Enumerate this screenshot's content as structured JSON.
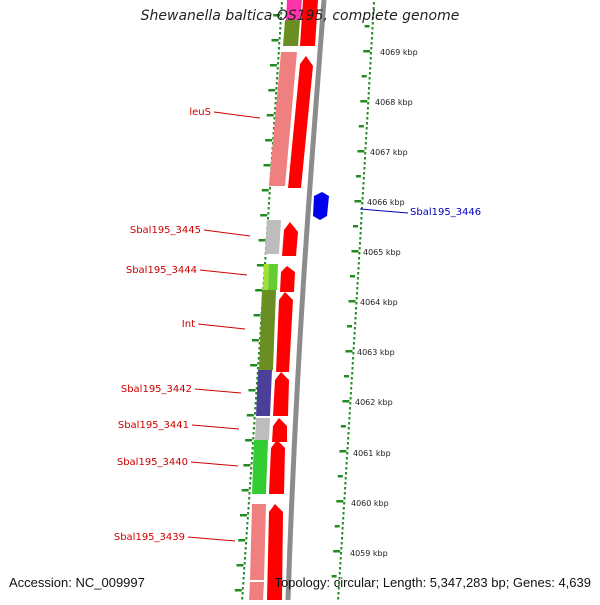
{
  "title": "Shewanella baltica OS195, complete genome",
  "accession": "Accession: NC_009997",
  "topology": "Topology: circular; Length: 5,347,283 bp; Genes: 4,639",
  "scale_ticks": [
    "4069 kbp",
    "4068 kbp",
    "4067 kbp",
    "4066 kbp",
    "4065 kbp",
    "4064 kbp",
    "4063 kbp",
    "4062 kbp",
    "4061 kbp",
    "4060 kbp",
    "4059 kbp"
  ],
  "colors": {
    "label_red": "#cc0000",
    "label_blue": "#0000bb",
    "dots": "#228b22",
    "backbone": "#8c8c8c",
    "cds": "#ff0000"
  },
  "left_labels": [
    {
      "name": "leuS"
    },
    {
      "name": "Sbal195_3445"
    },
    {
      "name": "Sbal195_3444"
    },
    {
      "name": "Int"
    },
    {
      "name": "Sbal195_3442"
    },
    {
      "name": "Sbal195_3441"
    },
    {
      "name": "Sbal195_3440"
    },
    {
      "name": "Sbal195_3439"
    }
  ],
  "right_labels": [
    {
      "name": "Sbal195_3446"
    }
  ]
}
